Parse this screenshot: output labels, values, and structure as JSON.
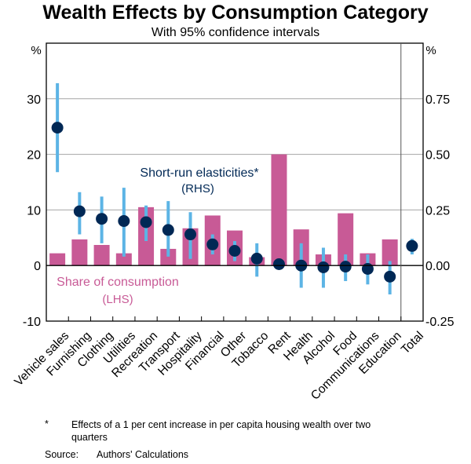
{
  "chart_data": {
    "type": "bar",
    "title": "Wealth Effects by Consumption Category",
    "subtitle": "With 95% confidence intervals",
    "left_axis": {
      "unit_label": "%",
      "ylim": [
        -10,
        40
      ],
      "ticks": [
        -10,
        0,
        10,
        20,
        30
      ],
      "tick_labels": [
        "-10",
        "0",
        "10",
        "20",
        "30"
      ]
    },
    "right_axis": {
      "unit_label": "%",
      "ylim": [
        -0.25,
        1.0
      ],
      "ticks": [
        -0.25,
        0,
        0.25,
        0.5,
        0.75
      ],
      "tick_labels": [
        "-0.25",
        "0.00",
        "0.25",
        "0.50",
        "0.75"
      ]
    },
    "gridlines": [
      10,
      20,
      30
    ],
    "categories": [
      "Vehicle sales",
      "Furnishing",
      "Clothing",
      "Utilities",
      "Recreation",
      "Transport",
      "Hospitality",
      "Financial",
      "Other",
      "Tobacco",
      "Rent",
      "Health",
      "Alcohol",
      "Food",
      "Communications",
      "Education",
      "Total"
    ],
    "series": [
      {
        "name": "Share of consumption",
        "axis": "LHS",
        "kind": "bar",
        "color": "#C85A96",
        "label": "Share of consumption",
        "axis_label": "(LHS)",
        "values": [
          2.2,
          4.7,
          3.7,
          2.2,
          10.5,
          3.0,
          6.7,
          9.0,
          6.3,
          1.5,
          20.0,
          6.5,
          2.0,
          9.4,
          2.2,
          4.7,
          null
        ]
      },
      {
        "name": "Short-run elasticities*",
        "axis": "RHS",
        "kind": "point-with-ci",
        "color": "#002855",
        "ci_color": "#5CB4E5",
        "label": "Short-run elasticities*",
        "axis_label": "(RHS)",
        "values": [
          0.62,
          0.244,
          0.21,
          0.2,
          0.195,
          0.16,
          0.14,
          0.095,
          0.066,
          0.031,
          0.006,
          0.0,
          -0.008,
          -0.005,
          -0.015,
          -0.05,
          0.088
        ],
        "ci_lower": [
          0.42,
          0.14,
          0.1,
          0.04,
          0.11,
          0.04,
          0.03,
          0.05,
          0.02,
          -0.05,
          null,
          -0.1,
          -0.1,
          -0.07,
          -0.085,
          -0.13,
          0.05
        ],
        "ci_upper": [
          0.82,
          0.33,
          0.31,
          0.35,
          0.27,
          0.29,
          0.24,
          0.14,
          0.11,
          0.1,
          null,
          0.1,
          0.08,
          0.05,
          0.05,
          0.02,
          0.12
        ]
      }
    ],
    "separator_before": "Total",
    "legend": "inline annotations"
  },
  "footnote": {
    "marker": "*",
    "text": "Effects of a 1 per cent increase in per capita housing wealth over two quarters"
  },
  "source": {
    "label": "Source:",
    "text": "Authors' Calculations"
  }
}
